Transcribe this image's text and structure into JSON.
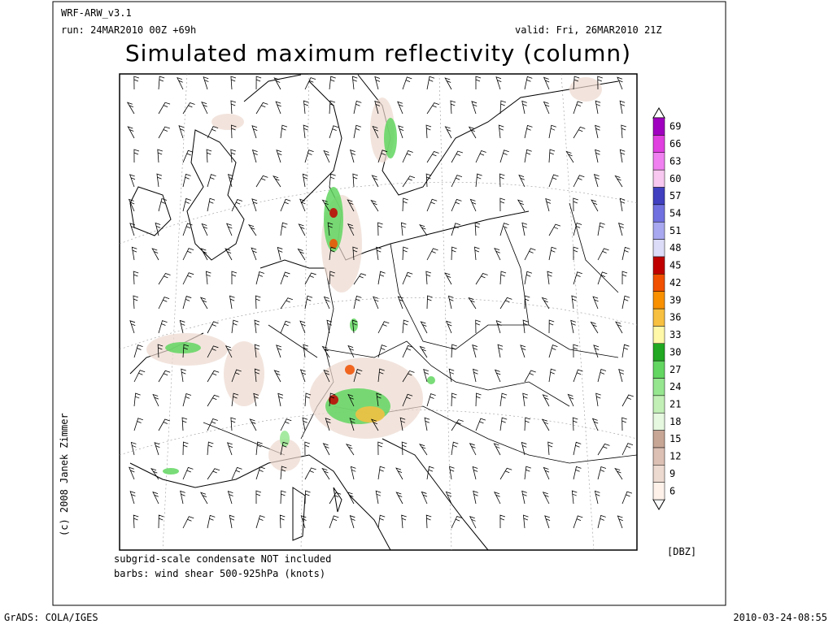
{
  "header": {
    "model": "WRF-ARW_v3.1",
    "run": "run: 24MAR2010 00Z +69h",
    "valid": "valid: Fri, 26MAR2010 21Z",
    "title": "Simulated maximum reflectivity (column)"
  },
  "colorbar": {
    "unit": "[DBZ]",
    "levels": [
      6,
      9,
      12,
      15,
      18,
      21,
      24,
      27,
      30,
      33,
      36,
      39,
      42,
      45,
      48,
      51,
      54,
      57,
      60,
      63,
      66,
      69
    ],
    "colors": [
      "#fdf1ea",
      "#ecd9cf",
      "#dcc0b4",
      "#c8a696",
      "#e6f8df",
      "#c2efb6",
      "#96e690",
      "#62d660",
      "#22a822",
      "#fff8a8",
      "#f8c040",
      "#f89000",
      "#f05000",
      "#c00000",
      "#dcdcf8",
      "#a8a8f0",
      "#7070e0",
      "#4040c0",
      "#f8c8f0",
      "#f080f0",
      "#e040e0",
      "#a000c0"
    ]
  },
  "notes": [
    "subgrid-scale condensate NOT included",
    "barbs: wind shear 500-925hPa (knots)"
  ],
  "copyright": "(c) 2008 Janek Zimmer",
  "footer": {
    "left": "GrADS: COLA/IGES",
    "right": "2010-03-24-08:55"
  }
}
